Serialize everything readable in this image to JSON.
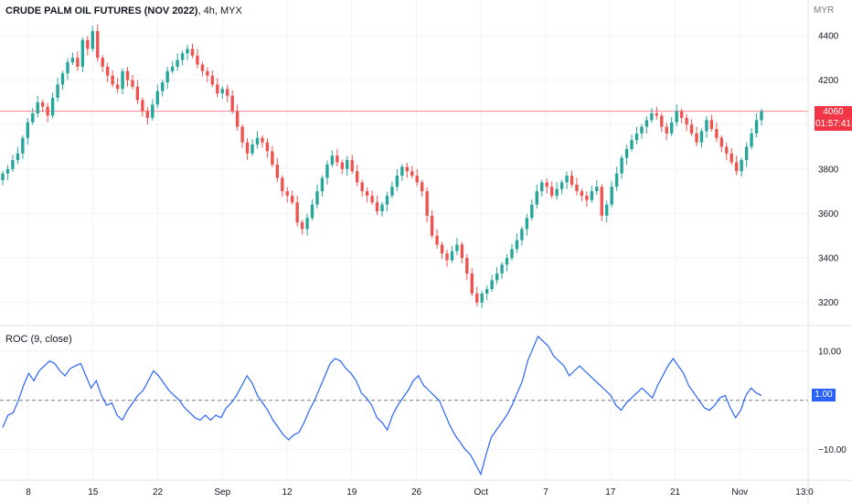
{
  "header": {
    "symbol_title": "CRUDE PALM OIL FUTURES (NOV 2022)",
    "interval": "4h",
    "exchange": "MYX",
    "currency": "MYR"
  },
  "price_badge": {
    "price": "4060",
    "countdown": "01:57:41"
  },
  "indicator": {
    "title": "ROC (9, close)",
    "value_badge": "1.00"
  },
  "colors": {
    "up": "#26a69a",
    "down": "#ef5350",
    "roc_line": "#2962ff",
    "price_line": "#f23645",
    "zero_line": "#787b86",
    "grid": "#f0f3fa"
  },
  "chart_data": [
    {
      "type": "candlestick",
      "title": "",
      "ylabel": "",
      "yticks": [
        3200,
        3400,
        3600,
        3800,
        4000,
        4200,
        4400
      ],
      "ylim": [
        3100,
        4560
      ],
      "last_price": 4060,
      "x_ticks": [
        "8",
        "15",
        "22",
        "Sep",
        "12",
        "19",
        "26",
        "Oct",
        "7",
        "17",
        "21",
        "Nov",
        "13:0"
      ],
      "close": [
        3780,
        3800,
        3840,
        3870,
        3940,
        4010,
        4050,
        4100,
        4080,
        4040,
        4120,
        4180,
        4230,
        4280,
        4300,
        4260,
        4380,
        4340,
        4420,
        4300,
        4260,
        4220,
        4180,
        4160,
        4240,
        4200,
        4170,
        4110,
        4060,
        4030,
        4090,
        4150,
        4190,
        4240,
        4260,
        4290,
        4320,
        4340,
        4310,
        4270,
        4240,
        4220,
        4180,
        4140,
        4160,
        4130,
        4060,
        3990,
        3920,
        3870,
        3910,
        3940,
        3920,
        3880,
        3820,
        3760,
        3700,
        3680,
        3650,
        3560,
        3530,
        3580,
        3640,
        3700,
        3760,
        3820,
        3860,
        3830,
        3800,
        3840,
        3790,
        3740,
        3700,
        3680,
        3650,
        3610,
        3640,
        3680,
        3720,
        3770,
        3810,
        3790,
        3770,
        3740,
        3700,
        3590,
        3500,
        3460,
        3420,
        3390,
        3430,
        3460,
        3400,
        3330,
        3240,
        3200,
        3240,
        3260,
        3300,
        3330,
        3370,
        3400,
        3440,
        3480,
        3530,
        3580,
        3640,
        3700,
        3740,
        3720,
        3680,
        3710,
        3740,
        3770,
        3730,
        3700,
        3680,
        3660,
        3700,
        3720,
        3590,
        3640,
        3720,
        3780,
        3850,
        3890,
        3930,
        3960,
        3990,
        4020,
        4050,
        4040,
        3990,
        3960,
        4010,
        4060,
        4030,
        4000,
        3960,
        3920,
        3970,
        4020,
        3980,
        3940,
        3900,
        3870,
        3830,
        3790,
        3840,
        3900,
        3960,
        4020,
        4060
      ]
    },
    {
      "type": "line",
      "title": "",
      "ylabel": "",
      "series": [
        {
          "name": "",
          "values": [
            -5.5,
            -3,
            -2.5,
            0,
            3,
            5.5,
            4,
            6,
            7,
            8,
            7.5,
            6,
            5,
            6.5,
            7,
            7.5,
            5,
            2.5,
            4,
            1,
            -1,
            -0.5,
            -3,
            -4,
            -2,
            -0.5,
            1,
            2,
            4,
            6,
            5,
            3.5,
            2,
            1,
            0,
            -1.5,
            -2.5,
            -3.5,
            -4,
            -3,
            -4,
            -3,
            -3.5,
            -1.5,
            -0.5,
            1,
            3,
            5,
            3.5,
            1,
            -0.5,
            -2,
            -4,
            -5.5,
            -7,
            -8,
            -7,
            -6.5,
            -4.5,
            -2,
            0,
            2.5,
            5,
            7.5,
            8.5,
            8,
            6.5,
            5.5,
            4,
            1.5,
            0.5,
            -1,
            -3.5,
            -4.5,
            -6,
            -3,
            -1,
            0.5,
            2,
            4,
            5,
            3,
            2,
            1,
            0,
            -2.5,
            -5,
            -7,
            -8.5,
            -10,
            -11,
            -13,
            -15,
            -11,
            -7.5,
            -6,
            -4.5,
            -3,
            -1,
            1.5,
            4,
            8,
            10.5,
            13,
            12,
            11,
            9,
            8,
            7,
            5,
            6,
            7,
            6,
            5,
            4,
            3,
            2,
            1,
            -1,
            -2,
            -0.5,
            0.5,
            1.5,
            2.5,
            1.5,
            0.5,
            3,
            5,
            7,
            8.5,
            7,
            5.5,
            3,
            1.5,
            0,
            -1.5,
            -2,
            -1,
            0.5,
            1,
            -1.5,
            -3.5,
            -2,
            1,
            2.5,
            1.5,
            1
          ]
        }
      ],
      "yticks": [
        -10,
        0,
        10
      ],
      "ytick_labels": [
        "−10.00",
        "",
        "10.00"
      ],
      "ylim": [
        -16,
        15
      ],
      "last_value": 1.0,
      "zero_line": "dashed"
    }
  ]
}
